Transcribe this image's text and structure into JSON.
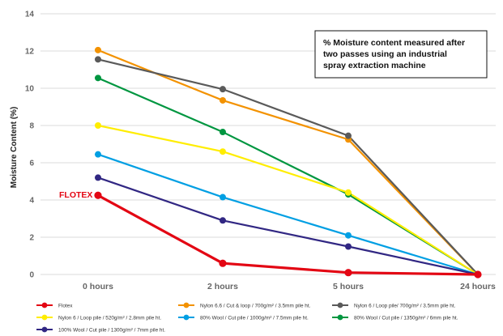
{
  "chart_data": {
    "type": "line",
    "ylabel": "Moisture Content (%)",
    "ylim": [
      0,
      14
    ],
    "yticks": [
      0,
      2,
      4,
      6,
      8,
      10,
      12,
      14
    ],
    "categories": [
      "0 hours",
      "2 hours",
      "5 hours",
      "24 hours"
    ],
    "grid": "horizontal",
    "legend_position": "bottom",
    "annotation_lines": [
      "% Moisture content measured after",
      "two passes using an industrial",
      "spray extraction machine"
    ],
    "series_label": "FLOTEX",
    "series": [
      {
        "name": "Flotex",
        "color": "#e30613",
        "values": [
          4.25,
          0.6,
          0.1,
          0.0
        ]
      },
      {
        "name": "Nylon 6.6 / Cut & loop / 700g/m² / 3.5mm pile ht.",
        "color": "#f39200",
        "values": [
          12.05,
          9.35,
          7.25,
          0.0
        ]
      },
      {
        "name": "Nylon 6 / Loop pile/ 700g/m² / 3.5mm pile ht.",
        "color": "#5a5a5a",
        "values": [
          11.55,
          9.95,
          7.45,
          0.0
        ]
      },
      {
        "name": "Nylon 6 / Loop pile / 520g/m² / 2.8mm pile ht.",
        "color": "#ffed00",
        "values": [
          8.0,
          6.6,
          4.4,
          0.0
        ]
      },
      {
        "name": "80% Wool / Cut pile / 1000g/m² / 7.5mm pile ht.",
        "color": "#009fe3",
        "values": [
          6.45,
          4.15,
          2.1,
          0.0
        ]
      },
      {
        "name": "80% Wool / Cut pile / 1350g/m² / 6mm pile ht.",
        "color": "#009640",
        "values": [
          10.55,
          7.65,
          4.3,
          0.0
        ]
      },
      {
        "name": "100% Wool / Cut pile / 1300g/m² / 7mm pile ht.",
        "color": "#312783",
        "values": [
          5.2,
          2.9,
          1.5,
          0.0
        ]
      }
    ]
  }
}
